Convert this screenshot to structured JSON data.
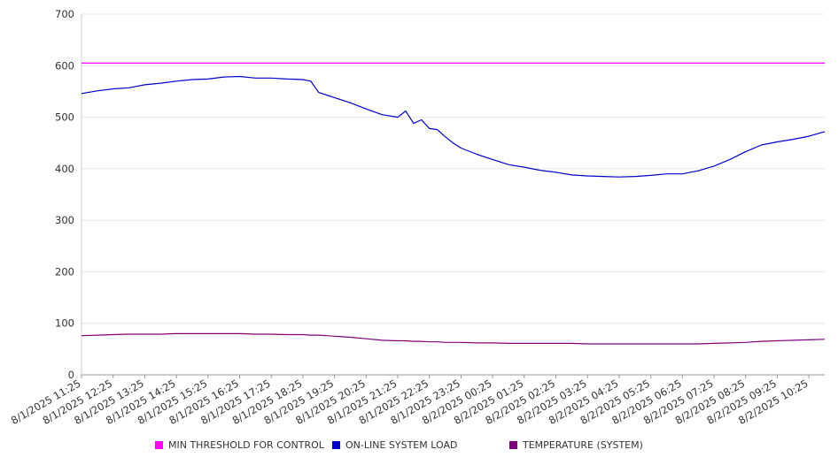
{
  "chart_data": {
    "type": "line",
    "title": "",
    "xlabel": "",
    "ylabel": "",
    "ylim": [
      0,
      700
    ],
    "yticks": [
      0,
      100,
      200,
      300,
      400,
      500,
      600,
      700
    ],
    "grid": true,
    "legend_position": "bottom",
    "x_tick_labels": [
      "8/1/2025 11:25",
      "8/1/2025 12:25",
      "8/1/2025 13:25",
      "8/1/2025 14:25",
      "8/1/2025 15:25",
      "8/1/2025 16:25",
      "8/1/2025 17:25",
      "8/1/2025 18:25",
      "8/1/2025 19:25",
      "8/1/2025 20:25",
      "8/1/2025 21:25",
      "8/1/2025 22:25",
      "8/1/2025 23:25",
      "8/2/2025 00:25",
      "8/2/2025 01:25",
      "8/2/2025 02:25",
      "8/2/2025 03:25",
      "8/2/2025 04:25",
      "8/2/2025 05:25",
      "8/2/2025 06:25",
      "8/2/2025 07:25",
      "8/2/2025 08:25",
      "8/2/2025 09:25",
      "8/2/2025 10:25"
    ],
    "x_hours": [
      0,
      0.5,
      1,
      1.5,
      2,
      2.5,
      3,
      3.5,
      4,
      4.5,
      5,
      5.5,
      6,
      6.5,
      7,
      7.25,
      7.5,
      7.75,
      8,
      8.5,
      9,
      9.5,
      10,
      10.25,
      10.5,
      10.75,
      11,
      11.25,
      11.5,
      11.75,
      12,
      12.5,
      13,
      13.5,
      14,
      14.5,
      15,
      15.5,
      16,
      16.5,
      17,
      17.5,
      18,
      18.5,
      19,
      19.5,
      20,
      20.5,
      21,
      21.5,
      22,
      22.5,
      23,
      23.5
    ],
    "series": [
      {
        "name": "MIN THRESHOLD FOR CONTROL",
        "color": "#ff00ff",
        "values": [
          605,
          605,
          605,
          605,
          605,
          605,
          605,
          605,
          605,
          605,
          605,
          605,
          605,
          605,
          605,
          605,
          605,
          605,
          605,
          605,
          605,
          605,
          605,
          605,
          605,
          605,
          605,
          605,
          605,
          605,
          605,
          605,
          605,
          605,
          605,
          605,
          605,
          605,
          605,
          605,
          605,
          605,
          605,
          605,
          605,
          605,
          605,
          605,
          605,
          605,
          605,
          605,
          605,
          605
        ]
      },
      {
        "name": "ON-LINE SYSTEM LOAD",
        "color": "#0000cc",
        "values": [
          546,
          551,
          555,
          557,
          563,
          566,
          570,
          573,
          574,
          578,
          579,
          576,
          576,
          574,
          573,
          570,
          548,
          543,
          538,
          528,
          516,
          505,
          500,
          512,
          488,
          495,
          478,
          476,
          462,
          450,
          440,
          428,
          418,
          408,
          403,
          397,
          393,
          388,
          386,
          385,
          384,
          385,
          387,
          390,
          390,
          396,
          405,
          418,
          433,
          446,
          452,
          457,
          463,
          472
        ]
      },
      {
        "name": "TEMPERATURE (SYSTEM)",
        "color": "#800080",
        "values": [
          76,
          77,
          78,
          79,
          79,
          79,
          80,
          80,
          80,
          80,
          80,
          79,
          79,
          78,
          78,
          77,
          77,
          76,
          75,
          73,
          70,
          67,
          66,
          66,
          65,
          65,
          64,
          64,
          63,
          63,
          63,
          62,
          62,
          61,
          61,
          61,
          61,
          61,
          60,
          60,
          60,
          60,
          60,
          60,
          60,
          60,
          61,
          62,
          63,
          65,
          66,
          67,
          68,
          69
        ]
      }
    ]
  }
}
